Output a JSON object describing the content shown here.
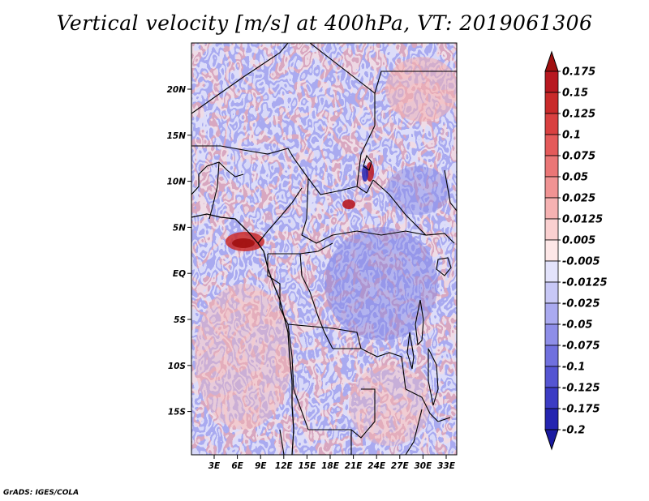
{
  "title": "Vertical velocity [m/s] at 400hPa, VT: 2019061306",
  "credit": "GrADS: IGES/COLA",
  "map": {
    "lat_labels": [
      "20N",
      "15N",
      "10N",
      "5N",
      "EQ",
      "5S",
      "10S",
      "15S"
    ],
    "lon_labels": [
      "3E",
      "6E",
      "9E",
      "12E",
      "15E",
      "18E",
      "21E",
      "24E",
      "27E",
      "30E",
      "33E"
    ]
  },
  "colorbar": {
    "levels": [
      {
        "label": "0.175",
        "color": "#b81820"
      },
      {
        "label": "0.15",
        "color": "#c92a2a"
      },
      {
        "label": "0.125",
        "color": "#d94040"
      },
      {
        "label": "0.1",
        "color": "#e45a5a"
      },
      {
        "label": "0.075",
        "color": "#ea7676"
      },
      {
        "label": "0.05",
        "color": "#f09393"
      },
      {
        "label": "0.025",
        "color": "#f6b2b2"
      },
      {
        "label": "0.0125",
        "color": "#fad0d0"
      },
      {
        "label": "0.005",
        "color": "#fde7e7"
      },
      {
        "label": "-0.005",
        "color": "#ffffff"
      },
      {
        "label": "-0.0125",
        "color": "#e3e3fb"
      },
      {
        "label": "-0.025",
        "color": "#c8c8f6"
      },
      {
        "label": "-0.05",
        "color": "#aaaaf0"
      },
      {
        "label": "-0.075",
        "color": "#8e8ee8"
      },
      {
        "label": "-0.1",
        "color": "#7070de"
      },
      {
        "label": "-0.125",
        "color": "#5555d2"
      },
      {
        "label": "-0.175",
        "color": "#3c3cc4"
      },
      {
        "label": "-0.2",
        "color": "#2424b0"
      }
    ],
    "top_color": "#a01010",
    "bottom_color": "#1a1aa0"
  }
}
